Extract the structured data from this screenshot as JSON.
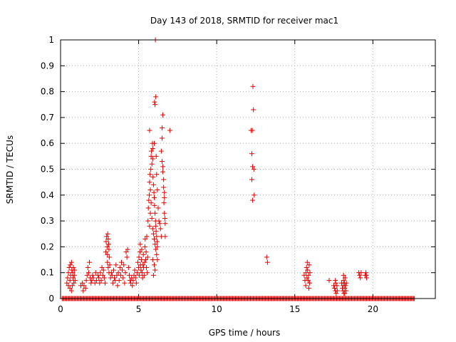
{
  "chart_data": {
    "type": "scatter",
    "title": "Day 143 of 2018, SRMTID for receiver mac1",
    "xlabel": "GPS time / hours",
    "ylabel": "SRMTID / TECUs",
    "xlim": [
      0,
      24
    ],
    "ylim": [
      0,
      1
    ],
    "grid": true,
    "x_ticks": [
      0,
      5,
      10,
      15,
      20
    ],
    "y_ticks": [
      0,
      0.1,
      0.2,
      0.3,
      0.4,
      0.5,
      0.6,
      0.7,
      0.8,
      0.9,
      1
    ],
    "x_tick_labels": [
      "0",
      "5",
      "10",
      "15",
      "20"
    ],
    "y_tick_labels": [
      "0",
      "0.1",
      "0.2",
      "0.3",
      "0.4",
      "0.5",
      "0.6",
      "0.7",
      "0.8",
      "0.9",
      "1"
    ],
    "marker_color": "#e00000",
    "baseline_zero": {
      "x_start": 0.1,
      "x_end": 22.7,
      "step": 0.06,
      "y": 0
    },
    "series": [
      {
        "name": "SRMTID",
        "points": [
          [
            0.4,
            0.06
          ],
          [
            0.45,
            0.08
          ],
          [
            0.5,
            0.1
          ],
          [
            0.55,
            0.12
          ],
          [
            0.6,
            0.07
          ],
          [
            0.62,
            0.13
          ],
          [
            0.65,
            0.09
          ],
          [
            0.7,
            0.14
          ],
          [
            0.72,
            0.11
          ],
          [
            0.75,
            0.05
          ],
          [
            0.78,
            0.1
          ],
          [
            0.8,
            0.08
          ],
          [
            0.82,
            0.12
          ],
          [
            0.85,
            0.06
          ],
          [
            0.88,
            0.09
          ],
          [
            0.9,
            0.11
          ],
          [
            0.93,
            0.07
          ],
          [
            0.5,
            0.05
          ],
          [
            0.6,
            0.04
          ],
          [
            0.7,
            0.03
          ],
          [
            1.3,
            0.05
          ],
          [
            1.4,
            0.06
          ],
          [
            1.45,
            0.03
          ],
          [
            1.5,
            0.05
          ],
          [
            1.6,
            0.04
          ],
          [
            1.65,
            0.07
          ],
          [
            1.7,
            0.09
          ],
          [
            1.75,
            0.12
          ],
          [
            1.8,
            0.1
          ],
          [
            1.85,
            0.14
          ],
          [
            1.9,
            0.08
          ],
          [
            1.95,
            0.06
          ],
          [
            2.0,
            0.07
          ],
          [
            2.05,
            0.09
          ],
          [
            2.1,
            0.08
          ],
          [
            2.2,
            0.06
          ],
          [
            2.25,
            0.1
          ],
          [
            2.3,
            0.07
          ],
          [
            2.4,
            0.09
          ],
          [
            2.45,
            0.08
          ],
          [
            2.5,
            0.06
          ],
          [
            2.55,
            0.1
          ],
          [
            2.6,
            0.07
          ],
          [
            2.65,
            0.12
          ],
          [
            2.7,
            0.09
          ],
          [
            2.75,
            0.11
          ],
          [
            2.8,
            0.08
          ],
          [
            2.85,
            0.06
          ],
          [
            2.9,
            0.18
          ],
          [
            2.92,
            0.22
          ],
          [
            2.95,
            0.24
          ],
          [
            2.98,
            0.2
          ],
          [
            3.0,
            0.17
          ],
          [
            3.02,
            0.25
          ],
          [
            3.05,
            0.23
          ],
          [
            3.08,
            0.21
          ],
          [
            3.1,
            0.19
          ],
          [
            3.12,
            0.16
          ],
          [
            3.0,
            0.14
          ],
          [
            3.05,
            0.12
          ],
          [
            3.1,
            0.1
          ],
          [
            3.15,
            0.13
          ],
          [
            3.2,
            0.08
          ],
          [
            3.25,
            0.1
          ],
          [
            3.3,
            0.09
          ],
          [
            3.35,
            0.06
          ],
          [
            3.4,
            0.11
          ],
          [
            3.45,
            0.08
          ],
          [
            3.5,
            0.07
          ],
          [
            3.55,
            0.13
          ],
          [
            3.6,
            0.09
          ],
          [
            3.65,
            0.05
          ],
          [
            3.7,
            0.1
          ],
          [
            3.75,
            0.07
          ],
          [
            3.8,
            0.12
          ],
          [
            3.85,
            0.09
          ],
          [
            3.9,
            0.14
          ],
          [
            3.95,
            0.11
          ],
          [
            4.0,
            0.08
          ],
          [
            4.05,
            0.13
          ],
          [
            4.1,
            0.06
          ],
          [
            4.15,
            0.1
          ],
          [
            4.2,
            0.18
          ],
          [
            4.25,
            0.16
          ],
          [
            4.3,
            0.19
          ],
          [
            4.35,
            0.12
          ],
          [
            4.4,
            0.09
          ],
          [
            4.45,
            0.07
          ],
          [
            4.5,
            0.06
          ],
          [
            4.55,
            0.08
          ],
          [
            4.6,
            0.05
          ],
          [
            4.65,
            0.07
          ],
          [
            4.7,
            0.09
          ],
          [
            4.75,
            0.11
          ],
          [
            4.8,
            0.08
          ],
          [
            4.85,
            0.06
          ],
          [
            4.9,
            0.1
          ],
          [
            4.95,
            0.14
          ],
          [
            5.0,
            0.12
          ],
          [
            5.02,
            0.16
          ],
          [
            5.05,
            0.09
          ],
          [
            5.08,
            0.18
          ],
          [
            5.1,
            0.21
          ],
          [
            5.12,
            0.13
          ],
          [
            5.15,
            0.11
          ],
          [
            5.18,
            0.15
          ],
          [
            5.2,
            0.19
          ],
          [
            5.22,
            0.1
          ],
          [
            5.25,
            0.08
          ],
          [
            5.28,
            0.13
          ],
          [
            5.3,
            0.17
          ],
          [
            5.32,
            0.12
          ],
          [
            5.35,
            0.09
          ],
          [
            5.38,
            0.14
          ],
          [
            5.4,
            0.2
          ],
          [
            5.42,
            0.23
          ],
          [
            5.45,
            0.15
          ],
          [
            5.48,
            0.18
          ],
          [
            5.5,
            0.12
          ],
          [
            5.52,
            0.24
          ],
          [
            5.55,
            0.1
          ],
          [
            5.58,
            0.16
          ],
          [
            5.6,
            0.3
          ],
          [
            5.62,
            0.35
          ],
          [
            5.65,
            0.38
          ],
          [
            5.68,
            0.4
          ],
          [
            5.7,
            0.45
          ],
          [
            5.72,
            0.48
          ],
          [
            5.75,
            0.42
          ],
          [
            5.78,
            0.5
          ],
          [
            5.8,
            0.55
          ],
          [
            5.82,
            0.57
          ],
          [
            5.85,
            0.52
          ],
          [
            5.88,
            0.6
          ],
          [
            5.9,
            0.54
          ],
          [
            5.92,
            0.47
          ],
          [
            5.95,
            0.44
          ],
          [
            5.98,
            0.41
          ],
          [
            6.0,
            0.39
          ],
          [
            6.02,
            0.36
          ],
          [
            6.05,
            0.33
          ],
          [
            6.08,
            0.3
          ],
          [
            6.1,
            0.28
          ],
          [
            6.12,
            0.26
          ],
          [
            6.15,
            0.24
          ],
          [
            6.18,
            0.22
          ],
          [
            6.2,
            0.2
          ],
          [
            5.7,
            0.28
          ],
          [
            5.75,
            0.33
          ],
          [
            5.8,
            0.37
          ],
          [
            5.85,
            0.31
          ],
          [
            5.9,
            0.27
          ],
          [
            5.95,
            0.25
          ],
          [
            6.0,
            0.23
          ],
          [
            6.05,
            0.21
          ],
          [
            6.1,
            0.19
          ],
          [
            6.15,
            0.17
          ],
          [
            6.2,
            0.15
          ],
          [
            5.7,
            0.65
          ],
          [
            5.9,
            0.58
          ],
          [
            6.0,
            0.6
          ],
          [
            6.05,
            0.75
          ],
          [
            6.1,
            0.78
          ],
          [
            6.02,
            0.76
          ],
          [
            6.07,
            1.0
          ],
          [
            6.12,
            0.55
          ],
          [
            6.15,
            0.48
          ],
          [
            6.2,
            0.42
          ],
          [
            6.25,
            0.35
          ],
          [
            6.3,
            0.3
          ],
          [
            6.35,
            0.29
          ],
          [
            6.4,
            0.27
          ],
          [
            6.45,
            0.24
          ],
          [
            6.5,
            0.66
          ],
          [
            6.55,
            0.71
          ],
          [
            6.5,
            0.62
          ],
          [
            6.45,
            0.57
          ],
          [
            6.5,
            0.53
          ],
          [
            6.55,
            0.51
          ],
          [
            6.55,
            0.49
          ],
          [
            6.6,
            0.46
          ],
          [
            6.6,
            0.43
          ],
          [
            6.65,
            0.39
          ],
          [
            6.62,
            0.37
          ],
          [
            6.65,
            0.33
          ],
          [
            6.68,
            0.31
          ],
          [
            6.7,
            0.29
          ],
          [
            6.7,
            0.24
          ],
          [
            6.65,
            0.41
          ],
          [
            5.9,
            0.15
          ],
          [
            6.0,
            0.13
          ],
          [
            6.05,
            0.11
          ],
          [
            5.95,
            0.09
          ],
          [
            7.0,
            0.65
          ],
          [
            12.2,
            0.65
          ],
          [
            12.25,
            0.56
          ],
          [
            12.3,
            0.51
          ],
          [
            12.28,
            0.65
          ],
          [
            12.32,
            0.82
          ],
          [
            12.35,
            0.73
          ],
          [
            12.38,
            0.5
          ],
          [
            12.25,
            0.46
          ],
          [
            12.3,
            0.38
          ],
          [
            12.4,
            0.4
          ],
          [
            13.2,
            0.16
          ],
          [
            13.25,
            0.14
          ],
          [
            15.6,
            0.09
          ],
          [
            15.65,
            0.07
          ],
          [
            15.7,
            0.05
          ],
          [
            15.72,
            0.1
          ],
          [
            15.75,
            0.12
          ],
          [
            15.78,
            0.08
          ],
          [
            15.8,
            0.14
          ],
          [
            15.82,
            0.11
          ],
          [
            15.85,
            0.07
          ],
          [
            15.88,
            0.09
          ],
          [
            15.9,
            0.04
          ],
          [
            15.92,
            0.13
          ],
          [
            15.95,
            0.06
          ],
          [
            15.97,
            0.1
          ],
          [
            17.2,
            0.07
          ],
          [
            17.5,
            0.05
          ],
          [
            17.55,
            0.04
          ],
          [
            17.6,
            0.03
          ],
          [
            17.62,
            0.06
          ],
          [
            17.65,
            0.02
          ],
          [
            17.7,
            0.05
          ],
          [
            17.72,
            0.03
          ],
          [
            17.6,
            0.07
          ],
          [
            18.0,
            0.06
          ],
          [
            18.05,
            0.04
          ],
          [
            18.08,
            0.03
          ],
          [
            18.1,
            0.05
          ],
          [
            18.12,
            0.07
          ],
          [
            18.15,
            0.02
          ],
          [
            18.18,
            0.06
          ],
          [
            18.2,
            0.04
          ],
          [
            18.22,
            0.08
          ],
          [
            18.25,
            0.05
          ],
          [
            18.28,
            0.03
          ],
          [
            18.3,
            0.06
          ],
          [
            18.12,
            0.09
          ],
          [
            18.2,
            0.02
          ],
          [
            19.1,
            0.1
          ],
          [
            19.15,
            0.09
          ],
          [
            19.2,
            0.08
          ],
          [
            19.25,
            0.1
          ],
          [
            19.5,
            0.09
          ],
          [
            19.55,
            0.1
          ],
          [
            19.6,
            0.08
          ],
          [
            19.58,
            0.09
          ]
        ]
      }
    ]
  }
}
